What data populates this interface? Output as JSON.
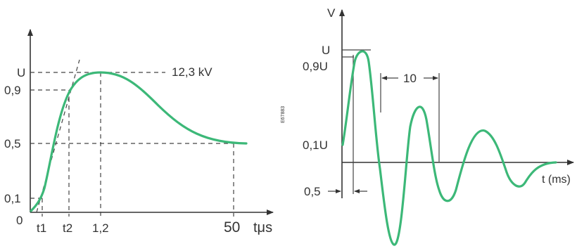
{
  "left_diagram": {
    "y_labels": {
      "u": "U",
      "p09": "0,9",
      "p05": "0,5",
      "p01": "0,1",
      "origin": "0"
    },
    "x_labels": {
      "t1": "t1",
      "t2": "t2",
      "peak": "1,2",
      "end": "50",
      "unit": "tμs"
    },
    "annotation": "12,3 kV"
  },
  "reference_code": "E67883",
  "right_diagram": {
    "y_axis_label": "V",
    "y_labels": {
      "u": "U",
      "p09": "0,9U",
      "p01": "0,1U"
    },
    "period_label": "10",
    "time_label": "t (ms)",
    "rise_label": "0,5"
  },
  "colors": {
    "curve": "#3cb878",
    "axis": "#333333"
  }
}
